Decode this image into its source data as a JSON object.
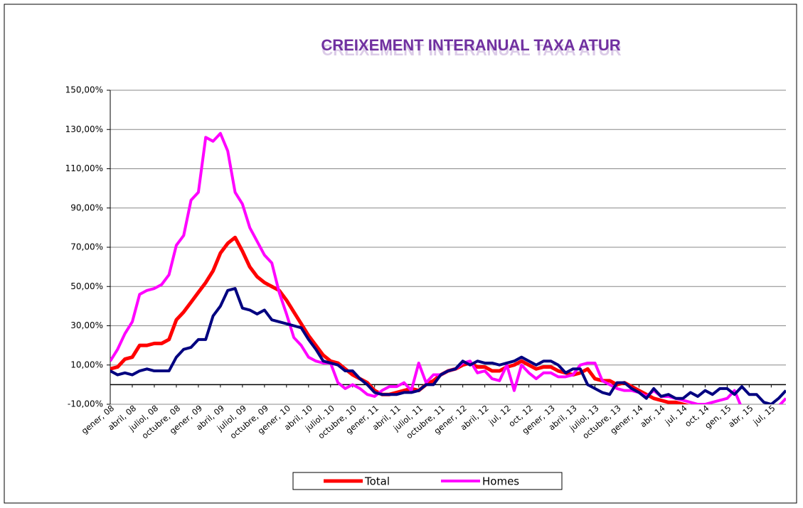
{
  "chart_data": {
    "type": "line",
    "title": "CREIXEMENT INTERANUAL TAXA  ATUR",
    "categories": [
      "gener, 08",
      null,
      null,
      "abril, 08",
      null,
      null,
      "juliol, 08",
      null,
      null,
      "octubre, 08",
      null,
      null,
      "gener, 09",
      null,
      null,
      "abril, 09",
      null,
      null,
      "juliol, 09",
      null,
      null,
      "octubre, 09",
      null,
      null,
      "gener, 10",
      null,
      null,
      "abril, 10",
      null,
      null,
      "juliol, 10",
      null,
      null,
      "octubre, 10",
      null,
      null,
      "gener, 11",
      null,
      null,
      "abril, 11",
      null,
      null,
      "juliol, 11",
      null,
      null,
      "octubre, 11",
      null,
      null,
      "gener, 12",
      null,
      null,
      "abril, 12",
      null,
      null,
      "jul, 12",
      null,
      null,
      "oct, 12",
      null,
      null,
      "gener, 13",
      null,
      null,
      "abril, 13",
      null,
      null,
      "juliol, 13",
      null,
      null,
      "octubre, 13",
      null,
      null,
      "gener, 14",
      null,
      null,
      "abr, 14",
      null,
      null,
      "jul, 14",
      null,
      null,
      "oct, 14",
      null,
      null,
      "gen, 15",
      null,
      null,
      "abr, 15",
      null,
      null,
      "jul, 15",
      null,
      null
    ],
    "series": [
      {
        "name": "Total",
        "color": "#ff0000",
        "width": 5,
        "values": [
          8,
          9,
          13,
          14,
          20,
          20,
          21,
          21,
          23,
          33,
          37,
          42,
          47,
          52,
          58,
          67,
          72,
          75,
          68,
          60,
          55,
          52,
          50,
          48,
          43,
          37,
          31,
          25,
          20,
          15,
          12,
          11,
          8,
          5,
          3,
          1,
          -3,
          -5,
          -5,
          -4,
          -3,
          -2,
          -3,
          0,
          2,
          5,
          7,
          8,
          10,
          11,
          9,
          9,
          7,
          7,
          9,
          10,
          12,
          10,
          8,
          9,
          9,
          7,
          6,
          5,
          6,
          8,
          3,
          2,
          2,
          0,
          1,
          -1,
          -3,
          -5,
          -7,
          -8,
          -9,
          -9,
          -10,
          -11,
          -12,
          -12,
          -12,
          -12,
          -12,
          -12,
          -12,
          -12,
          -12,
          -12,
          -12,
          -12,
          -12
        ]
      },
      {
        "name": "Homes",
        "color": "#ff00ff",
        "width": 4,
        "values": [
          12,
          18,
          26,
          32,
          46,
          48,
          49,
          51,
          56,
          71,
          76,
          94,
          98,
          126,
          124,
          128,
          119,
          98,
          92,
          80,
          73,
          66,
          62,
          47,
          36,
          24,
          20,
          14,
          12,
          11,
          11,
          1,
          -2,
          0,
          -2,
          -5,
          -6,
          -3,
          -1,
          -1,
          1,
          -3,
          11,
          1,
          5,
          5,
          7,
          8,
          11,
          12,
          6,
          7,
          3,
          2,
          10,
          -3,
          10,
          6,
          3,
          6,
          6,
          4,
          4,
          5,
          10,
          11,
          11,
          2,
          0,
          -2,
          -3,
          -3,
          -4,
          -6,
          -3,
          -6,
          -6,
          -7,
          -8,
          -9,
          -10,
          -10,
          -9,
          -8,
          -7,
          -3,
          -12,
          -12,
          -12,
          -12,
          -12,
          -11,
          -7
        ]
      },
      {
        "color": "#000080",
        "width": 4,
        "values": [
          7,
          5,
          6,
          5,
          7,
          8,
          7,
          7,
          7,
          14,
          18,
          19,
          23,
          23,
          35,
          40,
          48,
          49,
          39,
          38,
          36,
          38,
          33,
          32,
          31,
          30,
          29,
          23,
          18,
          12,
          11,
          10,
          7,
          7,
          3,
          0,
          -4,
          -5,
          -5,
          -5,
          -4,
          -4,
          -3,
          0,
          0,
          5,
          7,
          8,
          12,
          10,
          12,
          11,
          11,
          10,
          11,
          12,
          14,
          12,
          10,
          12,
          12,
          10,
          6,
          8,
          8,
          0,
          -2,
          -4,
          -5,
          1,
          1,
          -2,
          -4,
          -7,
          -2,
          -6,
          -5,
          -7,
          -7,
          -4,
          -6,
          -3,
          -5,
          -2,
          -2,
          -5,
          -1,
          -5,
          -5,
          -9,
          -10,
          -7,
          -3
        ]
      }
    ],
    "ylim": [
      -10,
      150
    ],
    "yticks": [
      {
        "value": -10,
        "label": "-10,00%"
      },
      {
        "value": 10,
        "label": "10,00%"
      },
      {
        "value": 30,
        "label": "30,00%"
      },
      {
        "value": 50,
        "label": "50,00%"
      },
      {
        "value": 70,
        "label": "70,00%"
      },
      {
        "value": 90,
        "label": "90,00%"
      },
      {
        "value": 110,
        "label": "110,00%"
      },
      {
        "value": 130,
        "label": "130,00%"
      },
      {
        "value": 150,
        "label": "150,00%"
      }
    ],
    "grid": true,
    "legend": "bottom"
  }
}
